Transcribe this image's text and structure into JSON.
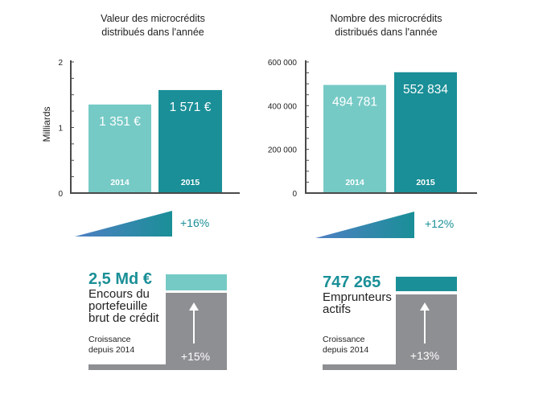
{
  "colors": {
    "year_2014": "#76cac6",
    "year_2015": "#1a8f97",
    "axis": "#4a4a4a",
    "grey_block": "#8e8f92",
    "wedge_start": "#4f7fc4",
    "wedge_end": "#1a8f97"
  },
  "chart_data": [
    {
      "type": "bar",
      "title": "Valeur des  microcrédits\ndistribués dans l'année",
      "ylabel": "Milliards",
      "ylim": [
        0,
        2
      ],
      "yticks": [
        "0",
        "1",
        "2"
      ],
      "categories": [
        "2014",
        "2015"
      ],
      "values": [
        1.351,
        1.571
      ],
      "data_labels": [
        "1 351 €",
        "1 571 €"
      ],
      "growth": "+16%"
    },
    {
      "type": "bar",
      "title": "Nombre des  microcrédits\ndistribués dans l'année",
      "ylabel": "",
      "ylim": [
        0,
        600000
      ],
      "yticks": [
        "0",
        "200 000",
        "400 000",
        "600 000"
      ],
      "categories": [
        "2014",
        "2015"
      ],
      "values": [
        494781,
        552834
      ],
      "data_labels": [
        "494 781",
        "552 834"
      ],
      "growth": "+12%"
    }
  ],
  "stats": [
    {
      "value": "2,5 Md €",
      "label": "Encours du\nportefeuille\nbrut de crédit",
      "growth_label": "Croissance\ndepuis 2014",
      "growth": "+15%",
      "growth_share": 0.15
    },
    {
      "value": "747 265",
      "label": "Emprunteurs\nactifs",
      "growth_label": "Croissance\ndepuis 2014",
      "growth": "+13%",
      "growth_share": 0.13
    }
  ]
}
